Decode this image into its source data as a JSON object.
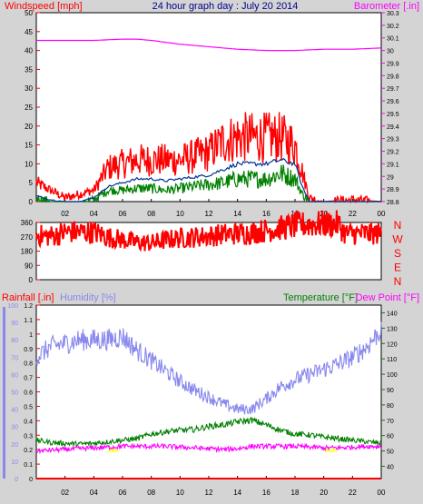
{
  "colors": {
    "background": "#d4d4d4",
    "plot": "#ffffff",
    "wind": "#ff0000",
    "wind_avg": "#003399",
    "gust_green": "#008000",
    "barometer": "#ff00ff",
    "direction": "#ff0000",
    "rain": "#ff0000",
    "humidity": "#8888ee",
    "temperature": "#008000",
    "dewpoint": "#ff00ff",
    "rain_marker": "#ffff66",
    "title": "#00008b",
    "axis_text": "#000000"
  },
  "chart_data": [
    {
      "type": "line",
      "panel": "wind_barometer",
      "title": "24 hour graph day : July 20 2014",
      "ylabel_left": "Windspeed [mph]",
      "ylabel_right": "Barometer [.in]",
      "x_ticks": [
        "02",
        "04",
        "06",
        "08",
        "10",
        "12",
        "14",
        "16",
        "18",
        "20",
        "22",
        "00"
      ],
      "y_left_ticks": [
        "0",
        "5",
        "10",
        "15",
        "20",
        "25",
        "30",
        "35",
        "40",
        "45",
        "50"
      ],
      "y_right_ticks": [
        "28.8",
        "28.9",
        "29",
        "29.1",
        "29.2",
        "29.3",
        "29.4",
        "29.5",
        "29.6",
        "29.7",
        "29.8",
        "29.9",
        "30",
        "30.1",
        "30.2",
        "30.3"
      ],
      "ylim_left": [
        0,
        50
      ],
      "ylim_right": [
        28.8,
        30.3
      ],
      "xlim_hours": [
        0,
        24
      ],
      "series": [
        {
          "key": "wind_peak",
          "hours": [
            0,
            1,
            2,
            3,
            4,
            5,
            6,
            7,
            8,
            9,
            10,
            11,
            12,
            13,
            14,
            15,
            16,
            17,
            18,
            18.5,
            19,
            20,
            22,
            24
          ],
          "values": [
            5,
            3,
            1,
            2,
            3,
            9,
            10,
            11,
            11,
            11,
            11,
            12,
            13,
            16,
            17,
            17,
            17,
            17,
            15,
            8,
            1,
            0,
            0.5,
            0
          ]
        },
        {
          "key": "wind_avg",
          "hours": [
            0,
            1,
            2,
            3,
            4,
            5,
            6,
            7,
            8,
            9,
            10,
            11,
            12,
            13,
            14,
            15,
            16,
            17,
            18,
            18.5,
            19,
            20,
            24
          ],
          "values": [
            1.5,
            0.5,
            0,
            0,
            1,
            4,
            5,
            6,
            6,
            5.5,
            6,
            6.5,
            7,
            8.5,
            10,
            10,
            10,
            11,
            10,
            4,
            0,
            0,
            0
          ]
        },
        {
          "key": "gust_green",
          "hours": [
            0,
            1,
            2,
            3,
            4,
            5,
            6,
            7,
            8,
            9,
            10,
            11,
            12,
            13,
            14,
            15,
            16,
            17,
            18,
            18.5,
            19,
            20,
            24
          ],
          "values": [
            1,
            0,
            0,
            0,
            0.5,
            3,
            3,
            3.5,
            3.5,
            3,
            3.5,
            4,
            4.5,
            5,
            6,
            6,
            6,
            7.5,
            6,
            2,
            0,
            0,
            0
          ]
        },
        {
          "name": "Barometer [.in]",
          "key": "barometer",
          "hours": [
            0,
            2,
            4,
            6,
            7,
            8,
            10,
            12,
            14,
            16,
            18,
            20,
            22,
            24
          ],
          "values": [
            30.08,
            30.08,
            30.08,
            30.09,
            30.09,
            30.08,
            30.05,
            30.03,
            30.01,
            30.0,
            30.0,
            30.01,
            30.01,
            30.02
          ]
        }
      ]
    },
    {
      "type": "line",
      "panel": "wind_direction",
      "ylabel_right_ticks": [
        "N",
        "W",
        "S",
        "E",
        "N"
      ],
      "y_left_ticks": [
        "0",
        "90",
        "180",
        "270",
        "360"
      ],
      "ylim": [
        0,
        360
      ],
      "xlim_hours": [
        0,
        24
      ],
      "series": [
        {
          "key": "direction",
          "hours": [
            0,
            0.7,
            1.5,
            2,
            3,
            4,
            5,
            6,
            7,
            8,
            9,
            10,
            11,
            12,
            13,
            14,
            15,
            16,
            17,
            18,
            19,
            20,
            21,
            21.5,
            22,
            24
          ],
          "values": [
            283,
            273,
            282,
            300,
            300,
            300,
            268,
            252,
            235,
            230,
            250,
            262,
            268,
            275,
            285,
            290,
            297,
            310,
            325,
            340,
            350,
            350,
            350,
            290,
            290,
            290
          ]
        }
      ]
    },
    {
      "type": "line",
      "panel": "rain_humidity_temp",
      "ylabel_rain": "Rainfall [.in]",
      "ylabel_humidity": "Humidity [%]",
      "ylabel_temp": "Temperature [°F]",
      "ylabel_dew": "Dew Point [°F]",
      "rain_ticks": [
        "0",
        "0.1",
        "0.2",
        "0.3",
        "0.4",
        "0.5",
        "0.6",
        "0.7",
        "0.8",
        "0.9",
        "1",
        "1.1",
        "1.2"
      ],
      "humidity_ticks": [
        "0",
        "10",
        "20",
        "30",
        "40",
        "50",
        "60",
        "70",
        "80",
        "90",
        "100"
      ],
      "temp_ticks": [
        "40",
        "50",
        "60",
        "70",
        "80",
        "90",
        "100",
        "110",
        "120",
        "130",
        "140"
      ],
      "rain_ylim": [
        0,
        1.2
      ],
      "humidity_ylim": [
        0,
        100
      ],
      "temp_ylim": [
        32,
        145
      ],
      "xlim_hours": [
        0,
        24
      ],
      "series": [
        {
          "key": "humidity",
          "hours": [
            0,
            1,
            2,
            3,
            4,
            5,
            6,
            7,
            8,
            9,
            10,
            11,
            12,
            13,
            14,
            15,
            16,
            17,
            18,
            19,
            20,
            21,
            22,
            23,
            24
          ],
          "values": [
            70,
            76,
            78,
            80,
            80,
            80,
            82,
            74,
            68,
            62,
            56,
            51,
            47,
            43,
            40,
            40,
            46,
            53,
            57,
            60,
            63,
            66,
            70,
            76,
            86
          ]
        },
        {
          "key": "temperature",
          "hours": [
            0,
            1,
            2,
            3,
            4,
            5,
            6,
            7,
            8,
            9,
            10,
            11,
            12,
            13,
            14,
            15,
            16,
            17,
            18,
            19,
            20,
            21,
            22,
            23,
            24
          ],
          "values": [
            57,
            55.5,
            55,
            54.5,
            55,
            56,
            57,
            58,
            61,
            62.5,
            63.5,
            64,
            66,
            67,
            69,
            70,
            67,
            63.5,
            61,
            60.5,
            59,
            58,
            57,
            56,
            55
          ]
        },
        {
          "key": "dewpoint",
          "hours": [
            0,
            1,
            2,
            3,
            4,
            5,
            6,
            7,
            8,
            9,
            10,
            11,
            12,
            13,
            14,
            15,
            16,
            17,
            18,
            19,
            20,
            21,
            22,
            23,
            24
          ],
          "values": [
            50,
            50.5,
            51,
            51.5,
            52,
            52.5,
            53,
            53,
            53,
            53,
            52.5,
            52,
            51.5,
            51,
            51.5,
            53,
            53,
            53,
            53,
            52.5,
            52,
            52,
            52.5,
            53,
            53
          ]
        },
        {
          "key": "rainfall",
          "hours": [
            0,
            24
          ],
          "values": [
            0,
            0
          ]
        }
      ],
      "x_ticks": [
        "02",
        "04",
        "06",
        "08",
        "10",
        "12",
        "14",
        "16",
        "18",
        "20",
        "22",
        "00"
      ]
    }
  ]
}
